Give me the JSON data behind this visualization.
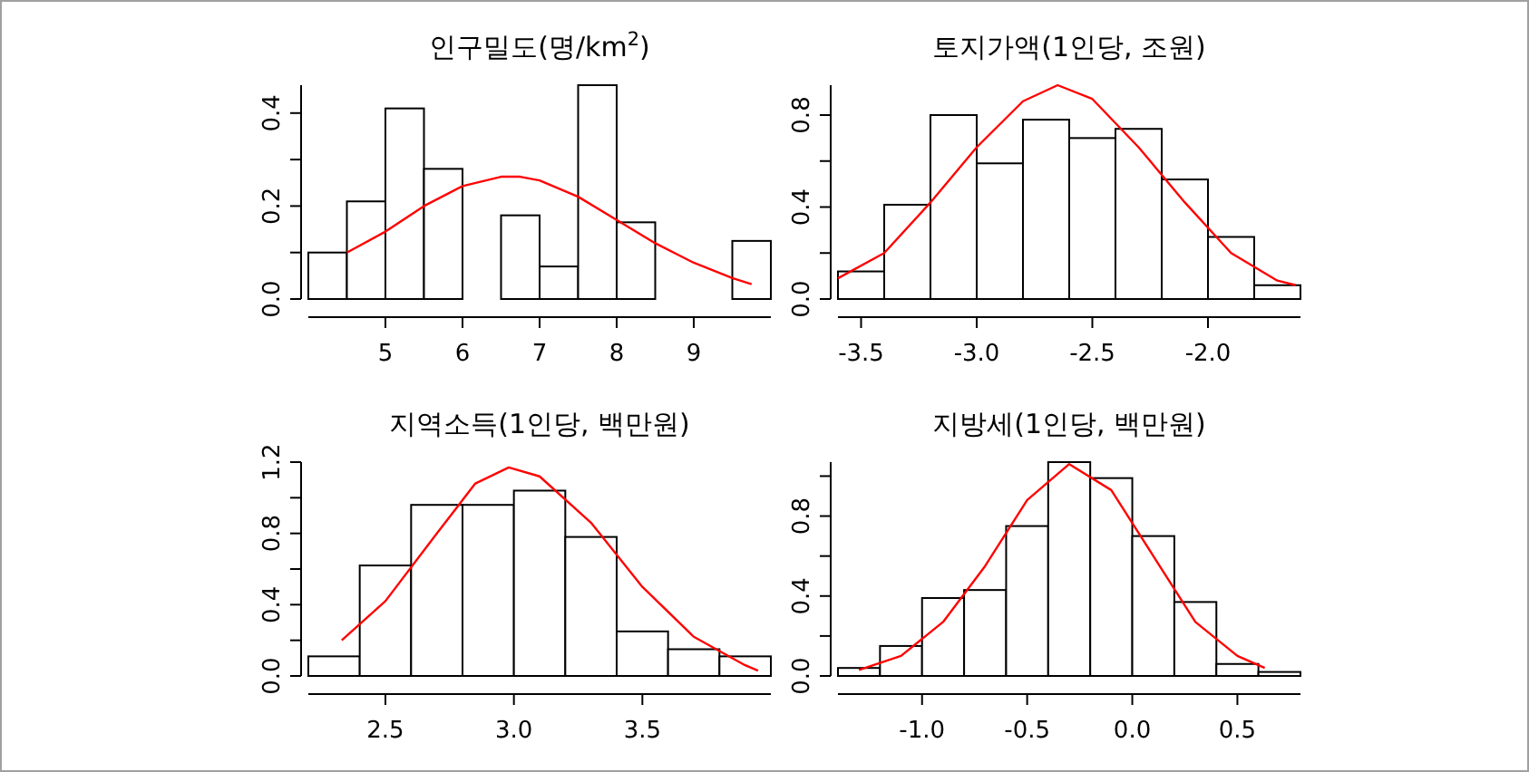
{
  "chart_data": [
    {
      "type": "histogram",
      "title": "인구밀도(명/km$^{2}$)",
      "bins": [
        4.0,
        4.5,
        5.0,
        5.5,
        6.0,
        6.5,
        7.0,
        7.5,
        8.0,
        8.5,
        9.0,
        9.5,
        10.0
      ],
      "values": [
        0.1,
        0.21,
        0.41,
        0.28,
        0,
        0.18,
        0.07,
        0.46,
        0.165,
        0,
        0,
        0.125
      ],
      "color": "#ffffff",
      "series": [
        {
          "type": "line",
          "color": "#ff0000",
          "x": [
            4.5,
            5.0,
            5.5,
            6.0,
            6.5,
            6.75,
            7.0,
            7.5,
            8.0,
            8.5,
            9.0,
            9.5,
            9.75
          ],
          "values": [
            0.1,
            0.145,
            0.2,
            0.243,
            0.263,
            0.263,
            0.255,
            0.22,
            0.17,
            0.12,
            0.078,
            0.045,
            0.032
          ]
        }
      ],
      "xlim": [
        4.0,
        10.0
      ],
      "ylim": [
        0,
        0.46
      ],
      "xticks": [
        5,
        6,
        7,
        8,
        9
      ],
      "yticks": [
        {
          "value": 0,
          "label": "0.0"
        },
        {
          "value": 0.1,
          "label": null
        },
        {
          "value": 0.2,
          "label": "0.2"
        },
        {
          "value": 0.3,
          "label": null
        },
        {
          "value": 0.4,
          "label": "0.4"
        }
      ]
    },
    {
      "type": "histogram",
      "title": "토지가액(1인당, 조원)",
      "bins": [
        -3.6,
        -3.4,
        -3.2,
        -3.0,
        -2.8,
        -2.6,
        -2.4,
        -2.2,
        -2.0,
        -1.8,
        -1.6
      ],
      "values": [
        0.12,
        0.41,
        0.8,
        0.59,
        0.78,
        0.7,
        0.74,
        0.52,
        0.27,
        0.06
      ],
      "color": "#ffffff",
      "series": [
        {
          "type": "line",
          "color": "#ff0000",
          "x": [
            -3.6,
            -3.4,
            -3.2,
            -3.0,
            -2.8,
            -2.65,
            -2.5,
            -2.3,
            -2.1,
            -1.9,
            -1.7,
            -1.62
          ],
          "values": [
            0.09,
            0.2,
            0.42,
            0.66,
            0.86,
            0.93,
            0.87,
            0.66,
            0.42,
            0.2,
            0.08,
            0.06
          ]
        }
      ],
      "xlim": [
        -3.6,
        -1.6
      ],
      "ylim": [
        0,
        0.93
      ],
      "xticks": [
        {
          "value": -3.5,
          "label": "-3.5"
        },
        {
          "value": -3.0,
          "label": "-3.0"
        },
        {
          "value": -2.5,
          "label": "-2.5"
        },
        {
          "value": -2.0,
          "label": "-2.0"
        }
      ],
      "yticks": [
        {
          "value": 0,
          "label": "0.0"
        },
        {
          "value": 0.2,
          "label": null
        },
        {
          "value": 0.4,
          "label": "0.4"
        },
        {
          "value": 0.6,
          "label": null
        },
        {
          "value": 0.8,
          "label": "0.8"
        }
      ]
    },
    {
      "type": "histogram",
      "title": "지역소득(1인당, 백만원)",
      "bins": [
        2.2,
        2.4,
        2.6,
        2.8,
        3.0,
        3.2,
        3.4,
        3.6,
        3.8,
        4.0
      ],
      "values": [
        0.11,
        0.62,
        0.96,
        0.96,
        1.04,
        0.78,
        0.25,
        0.15,
        0.11
      ],
      "color": "#ffffff",
      "series": [
        {
          "type": "line",
          "color": "#ff0000",
          "x": [
            2.33,
            2.5,
            2.7,
            2.85,
            2.98,
            3.1,
            3.3,
            3.5,
            3.7,
            3.9,
            3.95
          ],
          "values": [
            0.2,
            0.42,
            0.8,
            1.08,
            1.17,
            1.12,
            0.86,
            0.5,
            0.22,
            0.06,
            0.03
          ]
        }
      ],
      "xlim": [
        2.2,
        4.0
      ],
      "ylim": [
        0,
        1.2
      ],
      "xticks": [
        {
          "value": 2.5,
          "label": "2.5"
        },
        {
          "value": 3.0,
          "label": "3.0"
        },
        {
          "value": 3.5,
          "label": "3.5"
        }
      ],
      "yticks": [
        {
          "value": 0,
          "label": "0.0"
        },
        {
          "value": 0.2,
          "label": null
        },
        {
          "value": 0.4,
          "label": "0.4"
        },
        {
          "value": 0.6,
          "label": null
        },
        {
          "value": 0.8,
          "label": "0.8"
        },
        {
          "value": 1.0,
          "label": null
        },
        {
          "value": 1.2,
          "label": "1.2"
        }
      ]
    },
    {
      "type": "histogram",
      "title": "지방세(1인당, 백만원)",
      "bins": [
        -1.4,
        -1.2,
        -1.0,
        -0.8,
        -0.6,
        -0.4,
        -0.2,
        0.0,
        0.2,
        0.4,
        0.6,
        0.8
      ],
      "values": [
        0.04,
        0.15,
        0.39,
        0.43,
        0.75,
        1.07,
        0.99,
        0.7,
        0.37,
        0.06,
        0.02
      ],
      "color": "#ffffff",
      "series": [
        {
          "type": "line",
          "color": "#ff0000",
          "x": [
            -1.3,
            -1.1,
            -0.9,
            -0.7,
            -0.5,
            -0.3,
            -0.1,
            0.1,
            0.3,
            0.5,
            0.63
          ],
          "values": [
            0.03,
            0.1,
            0.27,
            0.55,
            0.88,
            1.06,
            0.93,
            0.6,
            0.27,
            0.1,
            0.04
          ]
        }
      ],
      "xlim": [
        -1.4,
        0.8
      ],
      "ylim": [
        0,
        1.07
      ],
      "xticks": [
        {
          "value": -1.0,
          "label": "-1.0"
        },
        {
          "value": -0.5,
          "label": "-0.5"
        },
        {
          "value": 0.0,
          "label": "0.0"
        },
        {
          "value": 0.5,
          "label": "0.5"
        }
      ],
      "yticks": [
        {
          "value": 0,
          "label": "0.0"
        },
        {
          "value": 0.2,
          "label": null
        },
        {
          "value": 0.4,
          "label": "0.4"
        },
        {
          "value": 0.6,
          "label": null
        },
        {
          "value": 0.8,
          "label": "0.8"
        },
        {
          "value": 1.0,
          "label": null
        }
      ]
    }
  ]
}
